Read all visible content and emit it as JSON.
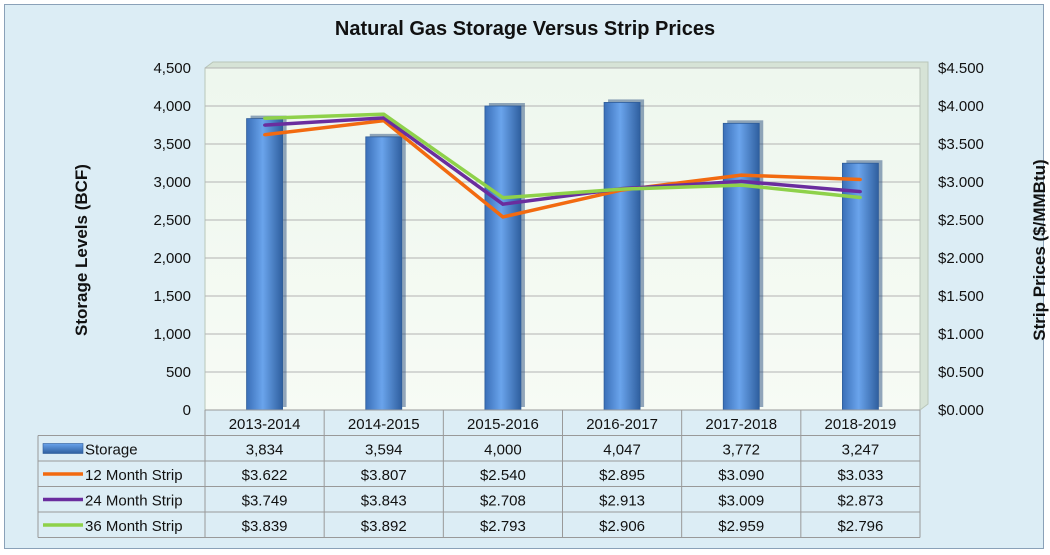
{
  "chart_data": {
    "type": "bar",
    "title": "Natural Gas Storage Versus Strip Prices",
    "ylabel": "Storage Levels (BCF)",
    "y2label": "Strip Prices ($/MMBtu)",
    "ylim": [
      0,
      4500
    ],
    "y2lim": [
      0,
      4.5
    ],
    "yticks": [
      "0",
      "500",
      "1,000",
      "1,500",
      "2,000",
      "2,500",
      "3,000",
      "3,500",
      "4,000",
      "4,500"
    ],
    "y2ticks": [
      "$0.000",
      "$0.500",
      "$1.000",
      "$1.500",
      "$2.000",
      "$2.500",
      "$3.000",
      "$3.500",
      "$4.000",
      "$4.500"
    ],
    "categories": [
      "2013-2014",
      "2014-2015",
      "2015-2016",
      "2016-2017",
      "2017-2018",
      "2018-2019"
    ],
    "bar_series": {
      "name": "Storage",
      "values": [
        3834,
        3594,
        4000,
        4047,
        3772,
        3247
      ],
      "labels": [
        "3,834",
        "3,594",
        "4,000",
        "4,047",
        "3,772",
        "3,247"
      ],
      "color": "#4a86d6"
    },
    "line_series": [
      {
        "name": "12 Month Strip",
        "values": [
          3.622,
          3.807,
          2.54,
          2.895,
          3.09,
          3.033
        ],
        "labels": [
          "$3.622",
          "$3.807",
          "$2.540",
          "$2.895",
          "$3.090",
          "$3.033"
        ],
        "color": "#f26a10"
      },
      {
        "name": "24 Month Strip",
        "values": [
          3.749,
          3.843,
          2.708,
          2.913,
          3.009,
          2.873
        ],
        "labels": [
          "$3.749",
          "$3.843",
          "$2.708",
          "$2.913",
          "$3.009",
          "$2.873"
        ],
        "color": "#6a2d9e"
      },
      {
        "name": "36 Month Strip",
        "values": [
          3.839,
          3.892,
          2.793,
          2.906,
          2.959,
          2.796
        ],
        "labels": [
          "$3.839",
          "$3.892",
          "$2.793",
          "$2.906",
          "$2.959",
          "$2.796"
        ],
        "color": "#8ed14a"
      }
    ],
    "grid": true,
    "legend": "data-table"
  }
}
